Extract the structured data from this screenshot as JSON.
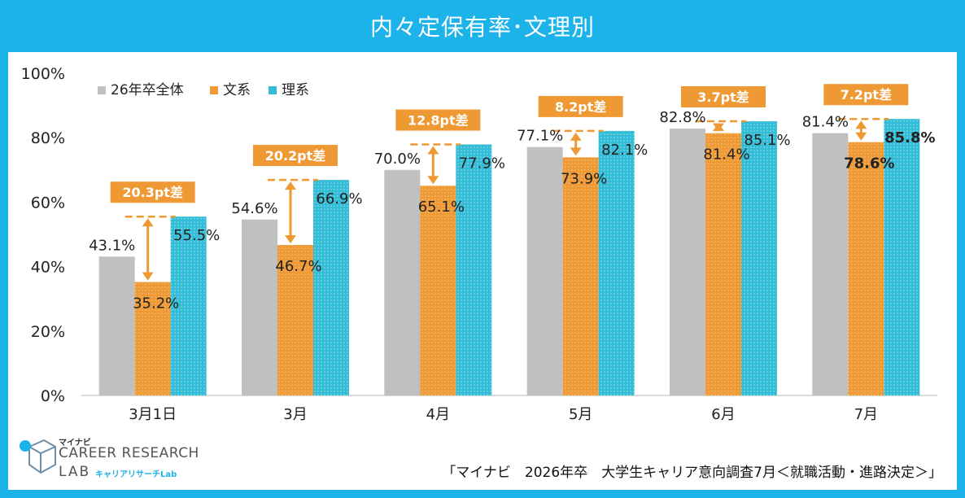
{
  "title": "内々定保有率･文理別",
  "chart_data": {
    "type": "bar",
    "categories": [
      "3月1日",
      "3月",
      "4月",
      "5月",
      "6月",
      "7月"
    ],
    "series": [
      {
        "name": "26年卒全体",
        "values": [
          43.1,
          54.6,
          70.0,
          77.1,
          82.8,
          81.4
        ],
        "labels": [
          "43.1%",
          "54.6%",
          "70.0%",
          "77.1%",
          "82.8%",
          "81.4%"
        ],
        "color": "#c0c0c0"
      },
      {
        "name": "文系",
        "values": [
          35.2,
          46.7,
          65.1,
          73.9,
          81.4,
          78.6
        ],
        "labels": [
          "35.2%",
          "46.7%",
          "65.1%",
          "73.9%",
          "81.4%",
          "78.6%"
        ],
        "color": "#ee9933"
      },
      {
        "name": "理系",
        "values": [
          55.5,
          66.9,
          77.9,
          82.1,
          85.1,
          85.8
        ],
        "labels": [
          "55.5%",
          "66.9%",
          "77.9%",
          "82.1%",
          "85.1%",
          "85.8%"
        ],
        "color": "#33bcd6"
      }
    ],
    "gap_labels": [
      "20.3pt差",
      "20.2pt差",
      "12.8pt差",
      "8.2pt差",
      "3.7pt差",
      "7.2pt差"
    ],
    "y_ticks": [
      "0%",
      "20%",
      "40%",
      "60%",
      "80%",
      "100%"
    ],
    "ylim": [
      0,
      100
    ],
    "legend_position": "top-left",
    "grid": false
  },
  "brand": {
    "small": "マイナビ",
    "line1": "CAREER RESEARCH",
    "line2": "LAB",
    "sub": "キャリアリサーチLab"
  },
  "source": "「マイナビ　2026年卒　大学生キャリア意向調査7月＜就職活動・進路決定＞」"
}
